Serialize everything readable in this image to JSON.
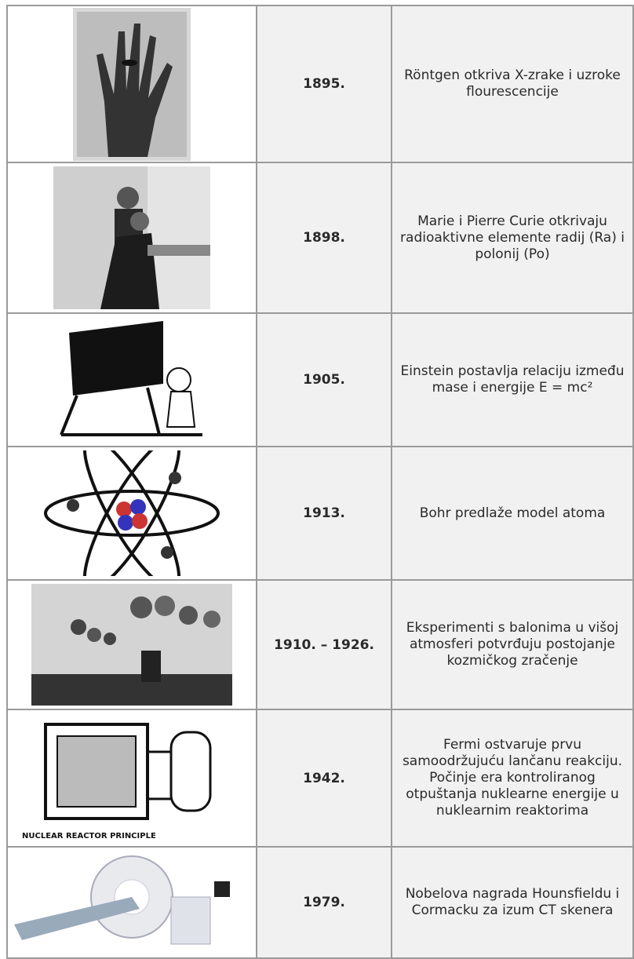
{
  "table": {
    "rows": [
      {
        "year": "1895.",
        "description": "Röntgen otkriva X-zrake i uzroke flourescencije"
      },
      {
        "year": "1898.",
        "description": "Marie i Pierre Curie otkrivaju radioaktivne elemente radij (Ra) i polonij (Po)"
      },
      {
        "year": "1905.",
        "description": "Einstein postavlja relaciju između mase i energije E = mc²"
      },
      {
        "year": "1913.",
        "description": "Bohr predlaže model atoma"
      },
      {
        "year": "1910. – 1926.",
        "description": "Eksperimenti s balonima u višoj atmosferi potvrđuju postojanje kozmičkog zračenje"
      },
      {
        "year": "1942.",
        "description": "Fermi ostvaruje prvu samoodržujuću lančanu reakciju. Počinje era kontroliranog otpuštanja nuklearne energije u nuklearnim reaktorima",
        "image_caption": "NUCLEAR REACTOR PRINCIPLE"
      },
      {
        "year": "1979.",
        "description": "Nobelova nagrada Hounsfieldu i Cormacku za izum CT skenera"
      }
    ]
  }
}
